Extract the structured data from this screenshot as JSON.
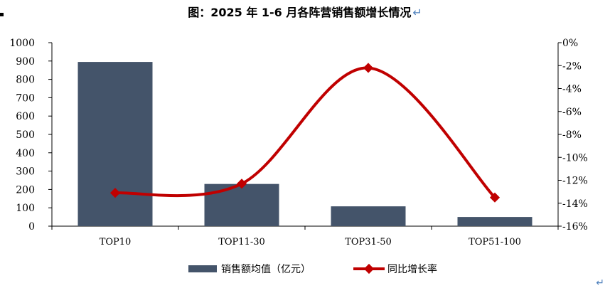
{
  "chart_data": {
    "type": "bar+line",
    "title": "图：2025 年 1-6 月各阵营销售额增长情况",
    "categories": [
      "TOP10",
      "TOP11-30",
      "TOP31-50",
      "TOP51-100"
    ],
    "series": [
      {
        "name": "销售额均值（亿元）",
        "type": "bar",
        "axis": "left",
        "values": [
          895,
          230,
          108,
          50
        ],
        "color": "#44546a"
      },
      {
        "name": "同比增长率",
        "type": "line",
        "axis": "right",
        "values": [
          -13.1,
          -12.3,
          -2.2,
          -13.5
        ],
        "color": "#c00000"
      }
    ],
    "y_left": {
      "range": [
        0,
        1000
      ],
      "ticks": [
        "0",
        "100",
        "200",
        "300",
        "400",
        "500",
        "600",
        "700",
        "800",
        "900",
        "1000"
      ]
    },
    "y_right": {
      "range": [
        -16,
        0
      ],
      "ticks": [
        "-16%",
        "-14%",
        "-12%",
        "-10%",
        "-8%",
        "-6%",
        "-4%",
        "-2%",
        "0%"
      ]
    },
    "legend_position": "bottom",
    "grid": false
  }
}
